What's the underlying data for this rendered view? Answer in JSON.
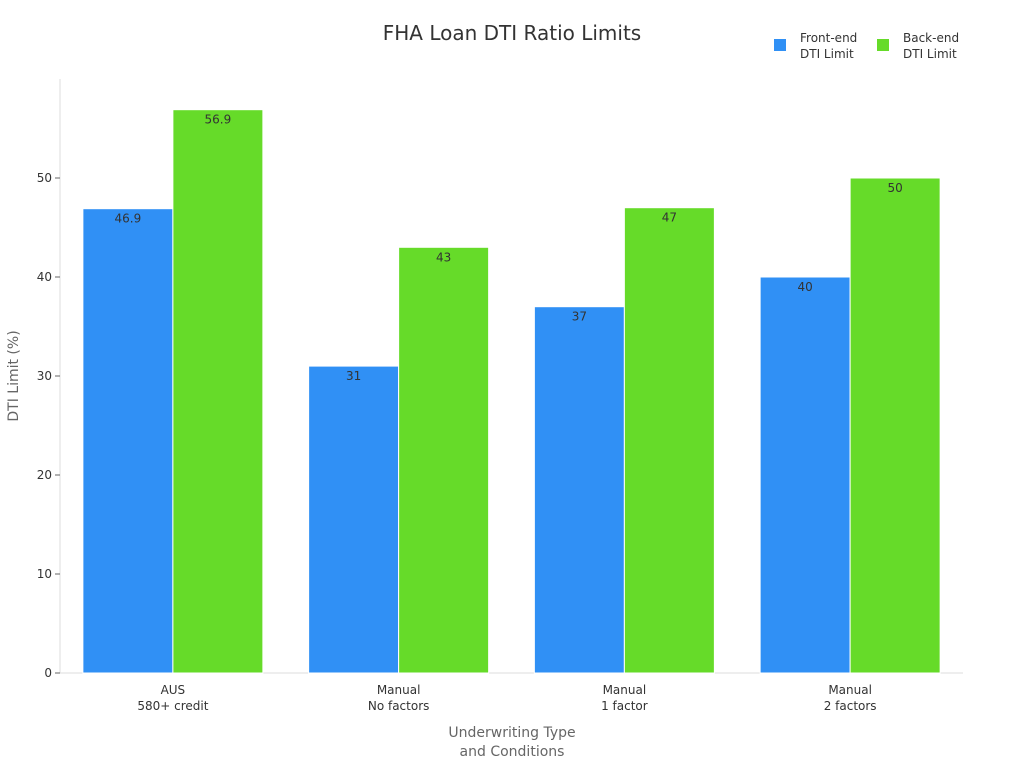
{
  "chart_data": {
    "type": "bar",
    "title": "FHA Loan DTI Ratio Limits",
    "xlabel": [
      "Underwriting Type",
      "and Conditions"
    ],
    "ylabel": "DTI Limit (%)",
    "ylim": [
      0,
      60
    ],
    "yticks": [
      0,
      10,
      20,
      30,
      40,
      50
    ],
    "grid": false,
    "legend_position": "top-right",
    "categories": [
      [
        "AUS",
        "580+ credit"
      ],
      [
        "Manual",
        "No factors"
      ],
      [
        "Manual",
        "1 factor"
      ],
      [
        "Manual",
        "2 factors"
      ]
    ],
    "series": [
      {
        "name": [
          "Front-end",
          "DTI Limit"
        ],
        "color": "#3090f5",
        "values": [
          46.9,
          31,
          37,
          40
        ]
      },
      {
        "name": [
          "Back-end",
          "DTI Limit"
        ],
        "color": "#66db29",
        "values": [
          56.9,
          43,
          47,
          50
        ]
      }
    ]
  }
}
